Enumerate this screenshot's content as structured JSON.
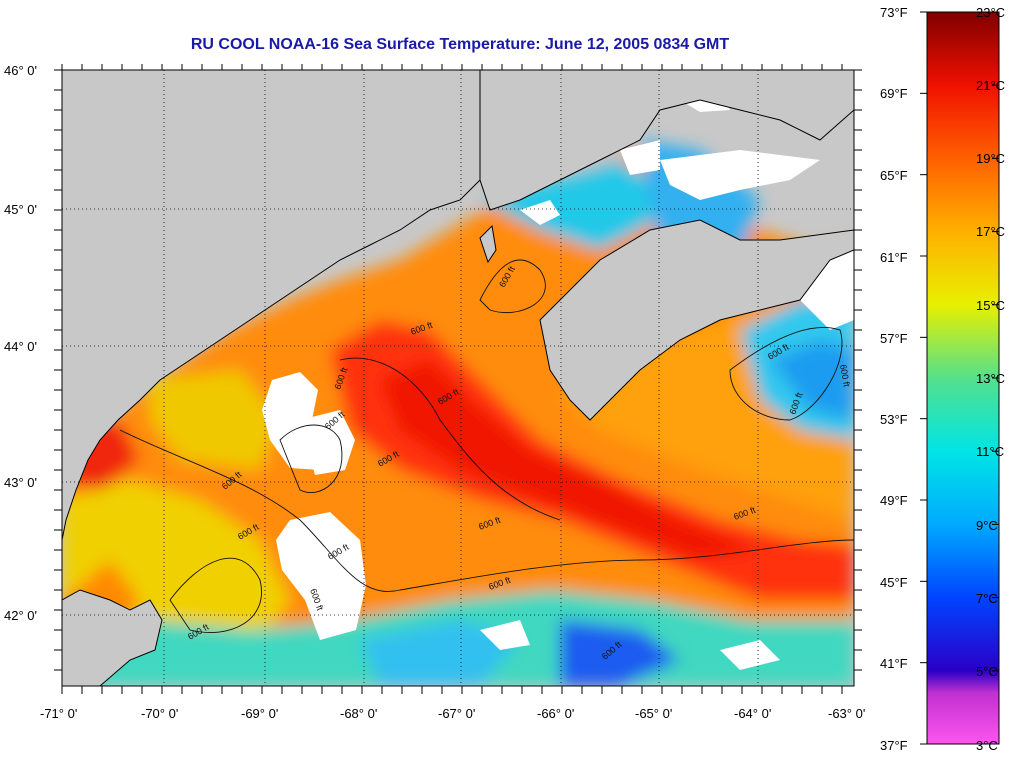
{
  "title": "RU COOL  NOAA-16  Sea Surface Temperature:  June 12, 2005 0834 GMT",
  "colors": {
    "land": "#c8c8c8",
    "cloud": "#ffffff",
    "coast": "#000000",
    "title": "#1a1aa8"
  },
  "lat_labels": [
    "46° 0'",
    "45° 0'",
    "44° 0'",
    "43° 0'",
    "42° 0'"
  ],
  "lon_labels": [
    "-71° 0'",
    "-70° 0'",
    "-69° 0'",
    "-68° 0'",
    "-67° 0'",
    "-66° 0'",
    "-65° 0'",
    "-64° 0'",
    "-63° 0'"
  ],
  "contour_label": "600 ft",
  "colorbar": {
    "f_labels": [
      "73°F",
      "69°F",
      "65°F",
      "61°F",
      "57°F",
      "53°F",
      "49°F",
      "45°F",
      "41°F",
      "37°F"
    ],
    "c_labels": [
      "23°C",
      "21°C",
      "19°C",
      "17°C",
      "15°C",
      "13°C",
      "11°C",
      "9°C",
      "7°C",
      "5°C",
      "3°C"
    ],
    "range_c": [
      3,
      23
    ],
    "range_f": [
      37,
      73
    ],
    "stops": [
      {
        "c": 3,
        "color": "#ff55ee"
      },
      {
        "c": 4.5,
        "color": "#a020c0"
      },
      {
        "c": 5,
        "color": "#2a00c8"
      },
      {
        "c": 7,
        "color": "#0044ff"
      },
      {
        "c": 9,
        "color": "#00aaff"
      },
      {
        "c": 11,
        "color": "#00e5e5"
      },
      {
        "c": 13,
        "color": "#55e08a"
      },
      {
        "c": 15,
        "color": "#e8f000"
      },
      {
        "c": 17,
        "color": "#ffb000"
      },
      {
        "c": 19,
        "color": "#ff6000"
      },
      {
        "c": 21,
        "color": "#f01000"
      },
      {
        "c": 23,
        "color": "#800000"
      }
    ]
  }
}
